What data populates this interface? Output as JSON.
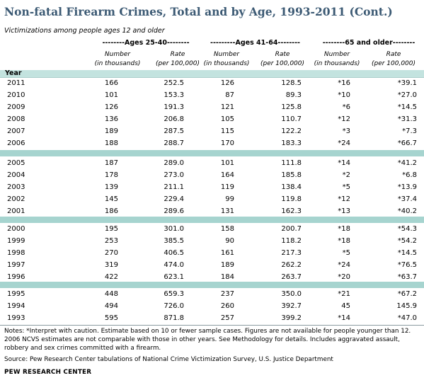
{
  "title": "Non-fatal Firearm Crimes, Total and by Age, 1993-2011 (Cont.)",
  "subtitle": "Victimizations among people ages 12 and older",
  "groups": [
    "--------Ages 25-40--------",
    "---------Ages 41-64--------",
    "--------65 and older--------"
  ],
  "col_headers": {
    "number_line1": "Number",
    "number_line2": "(in thousands)",
    "rate_line1": "Rate",
    "rate_line2": "(per 100,000)"
  },
  "year_label": "Year",
  "rows": [
    [
      "2011",
      "166",
      "252.5",
      "126",
      "128.5",
      "*16",
      "*39.1"
    ],
    [
      "2010",
      "101",
      "153.3",
      "87",
      "89.3",
      "*10",
      "*27.0"
    ],
    [
      "2009",
      "126",
      "191.3",
      "121",
      "125.8",
      "*6",
      "*14.5"
    ],
    [
      "2008",
      "136",
      "206.8",
      "105",
      "110.7",
      "*12",
      "*31.3"
    ],
    [
      "2007",
      "189",
      "287.5",
      "115",
      "122.2",
      "*3",
      "*7.3"
    ],
    [
      "2006",
      "188",
      "288.7",
      "170",
      "183.3",
      "*24",
      "*66.7"
    ],
    [
      "2005",
      "187",
      "289.0",
      "101",
      "111.8",
      "*14",
      "*41.2"
    ],
    [
      "2004",
      "178",
      "273.0",
      "164",
      "185.8",
      "*2",
      "*6.8"
    ],
    [
      "2003",
      "139",
      "211.1",
      "119",
      "138.4",
      "*5",
      "*13.9"
    ],
    [
      "2002",
      "145",
      "229.4",
      "99",
      "119.8",
      "*12",
      "*37.4"
    ],
    [
      "2001",
      "186",
      "289.6",
      "131",
      "162.3",
      "*13",
      "*40.2"
    ],
    [
      "2000",
      "195",
      "301.0",
      "158",
      "200.7",
      "*18",
      "*54.3"
    ],
    [
      "1999",
      "253",
      "385.5",
      "90",
      "118.2",
      "*18",
      "*54.2"
    ],
    [
      "1998",
      "270",
      "406.5",
      "161",
      "217.3",
      "*5",
      "*14.5"
    ],
    [
      "1997",
      "319",
      "474.0",
      "189",
      "262.2",
      "*24",
      "*76.5"
    ],
    [
      "1996",
      "422",
      "623.1",
      "184",
      "263.7",
      "*20",
      "*63.7"
    ],
    [
      "1995",
      "448",
      "659.3",
      "237",
      "350.0",
      "*21",
      "*67.2"
    ],
    [
      "1994",
      "494",
      "726.0",
      "260",
      "392.7",
      "45",
      "145.9"
    ],
    [
      "1993",
      "595",
      "871.8",
      "257",
      "399.2",
      "*14",
      "*47.0"
    ]
  ],
  "notes": "Notes: *Interpret with caution. Estimate based on 10 or fewer sample cases. Figures are not available for people younger than 12. 2006 NCVS estimates are not comparable with those in other years. See Methodology for details.  Includes aggravated assault, robbery and sex crimes committed with a firearm.",
  "source": "Source: Pew Research Center tabulations of National Crime Victimization Survey, U.S. Justice Department",
  "credit": "PEW RESEARCH CENTER",
  "colors": {
    "title": "#3c5a74",
    "band": "#a6d4cf",
    "header_band": "#c3e3df"
  }
}
